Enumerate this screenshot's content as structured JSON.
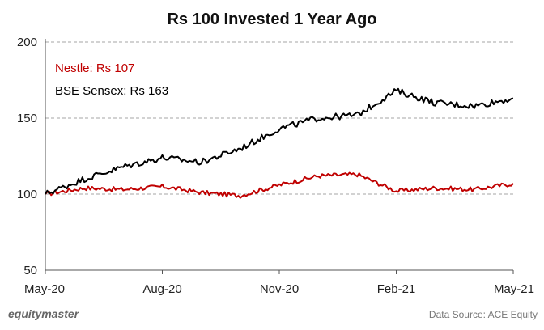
{
  "chart_data": {
    "type": "line",
    "title": "Rs 100 Invested 1 Year Ago",
    "x_ticks": [
      "May-20",
      "Aug-20",
      "Nov-20",
      "Feb-21",
      "May-21"
    ],
    "x": [
      "May-20",
      "Jun-20",
      "Jul-20",
      "Aug-20",
      "Sep-20",
      "Oct-20",
      "Nov-20",
      "Dec-20",
      "Jan-21",
      "Feb-21",
      "Mar-21",
      "Apr-21",
      "May-21"
    ],
    "ylim": [
      50,
      200
    ],
    "y_ticks": [
      50,
      100,
      150,
      200
    ],
    "grid": "horizontal dashed",
    "legend_position": "top-left",
    "series": [
      {
        "name": "Nestle: Rs 107",
        "color": "#c00000",
        "values": [
          100,
          104,
          103,
          105,
          101,
          99,
          106,
          112,
          113,
          102,
          104,
          103,
          107
        ]
      },
      {
        "name": "BSE Sensex: Rs 163",
        "color": "#000000",
        "values": [
          100,
          110,
          118,
          124,
          121,
          130,
          143,
          150,
          152,
          168,
          160,
          158,
          163
        ]
      }
    ]
  },
  "footer": {
    "brand": "equitymaster",
    "source": "Data Source: ACE Equity"
  }
}
